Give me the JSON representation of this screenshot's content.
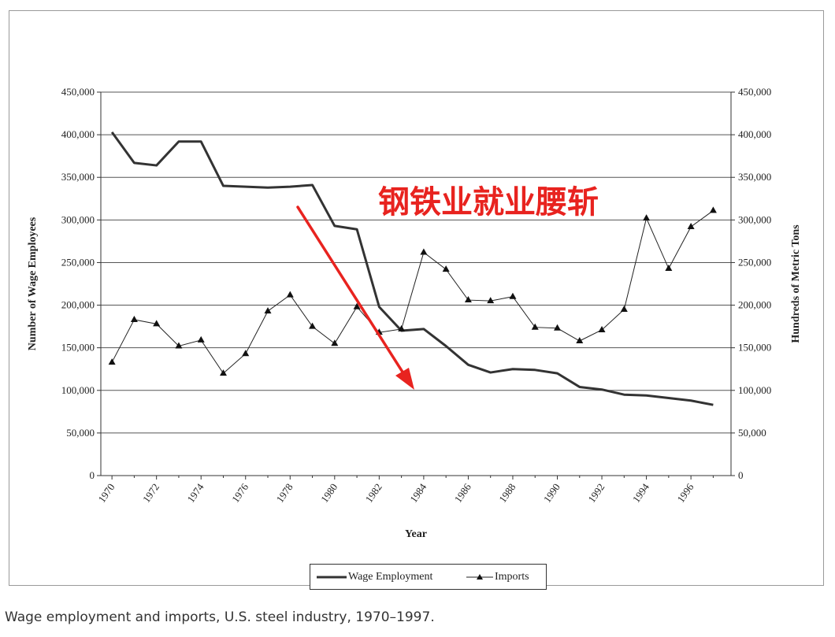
{
  "caption": "Wage employment and imports, U.S. steel industry, 1970–1997.",
  "annotation": {
    "text": "钢铁业就业腰斩",
    "color": "#e8231f"
  },
  "legend": {
    "wage_label": "Wage Employment",
    "imports_label": "Imports"
  },
  "chart_data": {
    "type": "line",
    "title": "",
    "xlabel": "Year",
    "ylabel_left": "Number of Wage Employees",
    "ylabel_right": "Hundreds of Metric Tons",
    "ylim": [
      0,
      450000
    ],
    "y_ticks": [
      "0",
      "50,000",
      "100,000",
      "150,000",
      "200,000",
      "250,000",
      "300,000",
      "350,000",
      "400,000",
      "450,000"
    ],
    "x_ticks": [
      "1970",
      "1972",
      "1974",
      "1976",
      "1978",
      "1980",
      "1982",
      "1984",
      "1986",
      "1988",
      "1990",
      "1992",
      "1994",
      "1996"
    ],
    "grid": "horizontal",
    "legend_position": "bottom-center",
    "series": [
      {
        "name": "Wage Employment",
        "color": "#333333",
        "x": [
          1970,
          1971,
          1972,
          1973,
          1974,
          1975,
          1976,
          1977,
          1978,
          1979,
          1980,
          1981,
          1982,
          1983,
          1984,
          1985,
          1986,
          1987,
          1988,
          1989,
          1990,
          1991,
          1992,
          1993,
          1994,
          1995,
          1996,
          1997
        ],
        "values": [
          403000,
          367000,
          364000,
          392000,
          392000,
          340000,
          339000,
          338000,
          339000,
          341000,
          293000,
          289000,
          198000,
          170000,
          172000,
          152000,
          130000,
          121000,
          125000,
          124000,
          120000,
          104000,
          101000,
          95000,
          94000,
          91000,
          88000,
          83000
        ]
      },
      {
        "name": "Imports",
        "color": "#222222",
        "x": [
          1970,
          1971,
          1972,
          1973,
          1974,
          1975,
          1976,
          1977,
          1978,
          1979,
          1980,
          1981,
          1982,
          1983,
          1984,
          1985,
          1986,
          1987,
          1988,
          1989,
          1990,
          1991,
          1992,
          1993,
          1994,
          1995,
          1996,
          1997
        ],
        "values": [
          133000,
          183000,
          178000,
          152000,
          159000,
          120000,
          143000,
          193000,
          212000,
          175000,
          155000,
          198000,
          168000,
          172000,
          262000,
          242000,
          206000,
          205000,
          210000,
          174000,
          173000,
          158000,
          171000,
          195000,
          302000,
          243000,
          292000,
          311000
        ]
      }
    ]
  }
}
